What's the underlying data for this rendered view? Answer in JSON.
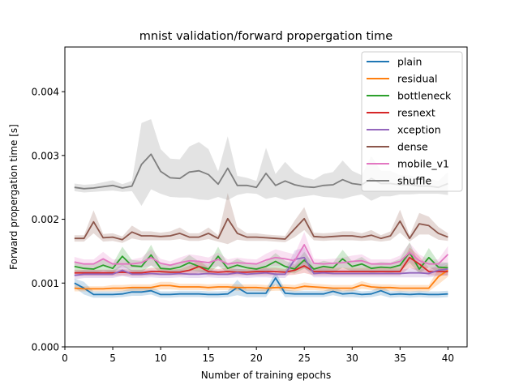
{
  "chart_data": {
    "type": "line",
    "title": "mnist validation/forward propergation time",
    "xlabel": "Number of training epochs",
    "ylabel": "Forward propergation time [s]",
    "xlim": [
      0,
      42
    ],
    "ylim": [
      0,
      0.0047
    ],
    "xticks": [
      0,
      5,
      10,
      15,
      20,
      25,
      30,
      35,
      40
    ],
    "yticks": [
      0.0,
      0.001,
      0.002,
      0.003,
      0.004
    ],
    "ytick_labels": [
      "0.000",
      "0.001",
      "0.002",
      "0.003",
      "0.004"
    ],
    "legend_position": "upper right",
    "grid": false,
    "x": [
      1,
      2,
      3,
      4,
      5,
      6,
      7,
      8,
      9,
      10,
      11,
      12,
      13,
      14,
      15,
      16,
      17,
      18,
      19,
      20,
      21,
      22,
      23,
      24,
      25,
      26,
      27,
      28,
      29,
      30,
      31,
      32,
      33,
      34,
      35,
      36,
      37,
      38,
      39,
      40
    ],
    "series": [
      {
        "name": "plain",
        "color": "#1f77b4",
        "values": [
          0.001,
          0.00092,
          0.00082,
          0.00082,
          0.00082,
          0.00083,
          0.00086,
          0.00086,
          0.00088,
          0.00082,
          0.00082,
          0.00083,
          0.00083,
          0.00083,
          0.00082,
          0.00082,
          0.00083,
          0.00093,
          0.00084,
          0.00084,
          0.00084,
          0.00108,
          0.00084,
          0.00083,
          0.00083,
          0.00083,
          0.00083,
          0.00087,
          0.00083,
          0.00084,
          0.00082,
          0.00083,
          0.00088,
          0.00082,
          0.00083,
          0.00082,
          0.00083,
          0.00082,
          0.00082,
          0.00083
        ],
        "band": [
          7e-05,
          0.0001,
          5e-05,
          5e-05,
          5e-05,
          5e-05,
          6e-05,
          6e-05,
          6e-05,
          5e-05,
          5e-05,
          5e-05,
          5e-05,
          5e-05,
          5e-05,
          5e-05,
          5e-05,
          0.00012,
          6e-05,
          6e-05,
          6e-05,
          0.0001,
          6e-05,
          5e-05,
          5e-05,
          5e-05,
          5e-05,
          6e-05,
          5e-05,
          6e-05,
          5e-05,
          5e-05,
          7e-05,
          5e-05,
          5e-05,
          5e-05,
          5e-05,
          5e-05,
          5e-05,
          5e-05
        ]
      },
      {
        "name": "residual",
        "color": "#ff7f0e",
        "values": [
          0.00092,
          0.00091,
          0.00091,
          0.00091,
          0.00092,
          0.00092,
          0.00093,
          0.00093,
          0.00093,
          0.00096,
          0.00096,
          0.00094,
          0.00094,
          0.00094,
          0.00093,
          0.00094,
          0.00094,
          0.00093,
          0.00093,
          0.00093,
          0.00092,
          0.00093,
          0.00093,
          0.00092,
          0.00095,
          0.00094,
          0.00093,
          0.00092,
          0.00092,
          0.00092,
          0.00097,
          0.00094,
          0.00093,
          0.00093,
          0.00092,
          0.00092,
          0.00092,
          0.00092,
          0.0011,
          0.0012
        ],
        "band": [
          5e-05,
          4e-05,
          4e-05,
          4e-05,
          5e-05,
          5e-05,
          5e-05,
          5e-05,
          5e-05,
          6e-05,
          6e-05,
          5e-05,
          5e-05,
          5e-05,
          5e-05,
          5e-05,
          5e-05,
          5e-05,
          5e-05,
          5e-05,
          5e-05,
          5e-05,
          5e-05,
          5e-05,
          6e-05,
          5e-05,
          5e-05,
          5e-05,
          5e-05,
          5e-05,
          6e-05,
          5e-05,
          5e-05,
          5e-05,
          5e-05,
          5e-05,
          5e-05,
          5e-05,
          0.00012,
          0.0001
        ]
      },
      {
        "name": "bottleneck",
        "color": "#2ca02c",
        "values": [
          0.00126,
          0.00123,
          0.00122,
          0.00128,
          0.00123,
          0.00142,
          0.00127,
          0.00126,
          0.00144,
          0.00123,
          0.00122,
          0.00125,
          0.00132,
          0.00126,
          0.00122,
          0.00142,
          0.00123,
          0.00128,
          0.00124,
          0.00122,
          0.00126,
          0.00134,
          0.00126,
          0.00122,
          0.00136,
          0.00122,
          0.00126,
          0.00124,
          0.00138,
          0.00126,
          0.0013,
          0.00123,
          0.00125,
          0.00124,
          0.00128,
          0.00148,
          0.00122,
          0.0014,
          0.00125,
          0.00124
        ],
        "band": [
          8e-05,
          7e-05,
          7e-05,
          9e-05,
          7e-05,
          0.00015,
          9e-05,
          9e-05,
          0.00016,
          7e-05,
          7e-05,
          8e-05,
          0.00012,
          8e-05,
          7e-05,
          0.00015,
          7e-05,
          0.0001,
          8e-05,
          7e-05,
          8e-05,
          0.00013,
          9e-05,
          7e-05,
          0.00013,
          7e-05,
          9e-05,
          8e-05,
          0.00014,
          8e-05,
          0.00011,
          7e-05,
          8e-05,
          8e-05,
          0.0001,
          0.00016,
          7e-05,
          0.00015,
          8e-05,
          8e-05
        ]
      },
      {
        "name": "resnext",
        "color": "#d62728",
        "values": [
          0.00116,
          0.00116,
          0.00116,
          0.00116,
          0.00116,
          0.00117,
          0.00116,
          0.00116,
          0.00118,
          0.00118,
          0.00117,
          0.00117,
          0.0012,
          0.00126,
          0.00118,
          0.00117,
          0.00118,
          0.00117,
          0.00117,
          0.00118,
          0.00118,
          0.00118,
          0.00117,
          0.0012,
          0.00127,
          0.00118,
          0.00118,
          0.00118,
          0.00118,
          0.00118,
          0.00118,
          0.00118,
          0.00118,
          0.00118,
          0.00118,
          0.0014,
          0.0013,
          0.00118,
          0.00118,
          0.00118
        ],
        "band": [
          5e-05,
          5e-05,
          5e-05,
          5e-05,
          5e-05,
          5e-05,
          5e-05,
          5e-05,
          6e-05,
          6e-05,
          5e-05,
          5e-05,
          7e-05,
          0.0001,
          6e-05,
          5e-05,
          6e-05,
          5e-05,
          5e-05,
          6e-05,
          6e-05,
          6e-05,
          5e-05,
          7e-05,
          0.00011,
          6e-05,
          6e-05,
          6e-05,
          6e-05,
          6e-05,
          6e-05,
          6e-05,
          6e-05,
          6e-05,
          6e-05,
          0.00016,
          0.00012,
          6e-05,
          6e-05,
          6e-05
        ]
      },
      {
        "name": "xception",
        "color": "#9467bd",
        "values": [
          0.00112,
          0.00114,
          0.00114,
          0.00114,
          0.00114,
          0.0012,
          0.00114,
          0.00114,
          0.00115,
          0.00114,
          0.00114,
          0.00115,
          0.00114,
          0.00114,
          0.00115,
          0.00114,
          0.00114,
          0.00116,
          0.00114,
          0.00115,
          0.00116,
          0.00114,
          0.00114,
          0.00137,
          0.0014,
          0.00115,
          0.00116,
          0.00115,
          0.00115,
          0.00115,
          0.00115,
          0.00115,
          0.00115,
          0.00115,
          0.00115,
          0.00116,
          0.00116,
          0.00115,
          0.0012,
          0.00122
        ],
        "band": [
          6e-05,
          6e-05,
          6e-05,
          6e-05,
          6e-05,
          9e-05,
          6e-05,
          6e-05,
          6e-05,
          6e-05,
          6e-05,
          6e-05,
          6e-05,
          6e-05,
          6e-05,
          6e-05,
          6e-05,
          7e-05,
          6e-05,
          6e-05,
          7e-05,
          6e-05,
          6e-05,
          0.00014,
          0.00016,
          6e-05,
          7e-05,
          6e-05,
          6e-05,
          6e-05,
          6e-05,
          6e-05,
          6e-05,
          6e-05,
          6e-05,
          7e-05,
          7e-05,
          6e-05,
          9e-05,
          0.0001
        ]
      },
      {
        "name": "dense",
        "color": "#8c564b",
        "values": [
          0.0017,
          0.0017,
          0.00196,
          0.00171,
          0.00172,
          0.00168,
          0.0018,
          0.00174,
          0.00174,
          0.00173,
          0.00174,
          0.00178,
          0.00172,
          0.00172,
          0.00178,
          0.0017,
          0.00201,
          0.00178,
          0.00172,
          0.00172,
          0.00171,
          0.0017,
          0.00169,
          0.00185,
          0.00201,
          0.00173,
          0.00172,
          0.00173,
          0.00174,
          0.00174,
          0.00172,
          0.00175,
          0.0017,
          0.00174,
          0.00197,
          0.0017,
          0.00193,
          0.0019,
          0.00178,
          0.00172
        ],
        "band": [
          5e-05,
          5e-05,
          0.00018,
          6e-05,
          6e-05,
          5e-05,
          0.0001,
          7e-05,
          7e-05,
          6e-05,
          7e-05,
          9e-05,
          6e-05,
          6e-05,
          9e-05,
          5e-05,
          0.0004,
          0.0001,
          6e-05,
          6e-05,
          5e-05,
          5e-05,
          5e-05,
          0.00013,
          0.00018,
          6e-05,
          6e-05,
          6e-05,
          7e-05,
          7e-05,
          6e-05,
          8e-05,
          5e-05,
          7e-05,
          0.00018,
          5e-05,
          0.00017,
          0.00014,
          0.0001,
          6e-05
        ],
        "band_style": "dense"
      },
      {
        "name": "mobile_v1",
        "color": "#e377c2",
        "values": [
          0.00133,
          0.0013,
          0.0013,
          0.00138,
          0.0013,
          0.0013,
          0.0013,
          0.00132,
          0.0014,
          0.00131,
          0.00128,
          0.00132,
          0.00135,
          0.00134,
          0.00132,
          0.00137,
          0.0013,
          0.00132,
          0.00131,
          0.0013,
          0.00136,
          0.0014,
          0.00138,
          0.00135,
          0.0016,
          0.00131,
          0.0013,
          0.00131,
          0.00132,
          0.00134,
          0.00135,
          0.0013,
          0.0013,
          0.0013,
          0.00134,
          0.00148,
          0.00135,
          0.0013,
          0.0013,
          0.00145
        ],
        "band": [
          8e-05,
          7e-05,
          7e-05,
          0.00011,
          7e-05,
          7e-05,
          7e-05,
          8e-05,
          0.00013,
          7e-05,
          6e-05,
          8e-05,
          0.0001,
          9e-05,
          8e-05,
          0.00011,
          7e-05,
          8e-05,
          7e-05,
          7e-05,
          0.0001,
          0.00013,
          0.00011,
          0.0001,
          0.0002,
          7e-05,
          7e-05,
          7e-05,
          8e-05,
          9e-05,
          0.0001,
          7e-05,
          7e-05,
          7e-05,
          9e-05,
          0.00015,
          0.0001,
          7e-05,
          7e-05,
          0.00013
        ]
      },
      {
        "name": "shuffle",
        "color": "#7f7f7f",
        "values": [
          0.0025,
          0.00248,
          0.00249,
          0.00251,
          0.00253,
          0.00249,
          0.00252,
          0.00286,
          0.00302,
          0.00275,
          0.00265,
          0.00264,
          0.00274,
          0.00276,
          0.0027,
          0.00255,
          0.0028,
          0.00253,
          0.00253,
          0.0025,
          0.00272,
          0.00253,
          0.0026,
          0.00254,
          0.00251,
          0.0025,
          0.00253,
          0.00254,
          0.00262,
          0.00256,
          0.00254,
          0.00264,
          0.00256,
          0.00256,
          0.00254,
          0.00254,
          0.00252,
          0.00252,
          0.0025,
          0.00256
        ],
        "band": [
          6e-05,
          6e-05,
          6e-05,
          7e-05,
          8e-05,
          6e-05,
          8e-05,
          0.00065,
          0.00055,
          0.00035,
          0.0003,
          0.0003,
          0.0004,
          0.00045,
          0.0004,
          0.0002,
          0.0005,
          0.00015,
          0.00012,
          0.0001,
          0.0004,
          0.00018,
          0.0003,
          0.0002,
          0.00015,
          0.00012,
          0.00018,
          0.0002,
          0.0003,
          0.0002,
          0.00015,
          0.00035,
          0.0002,
          0.0002,
          0.00015,
          0.00015,
          0.00012,
          0.00012,
          0.0001,
          0.00018
        ]
      }
    ]
  }
}
